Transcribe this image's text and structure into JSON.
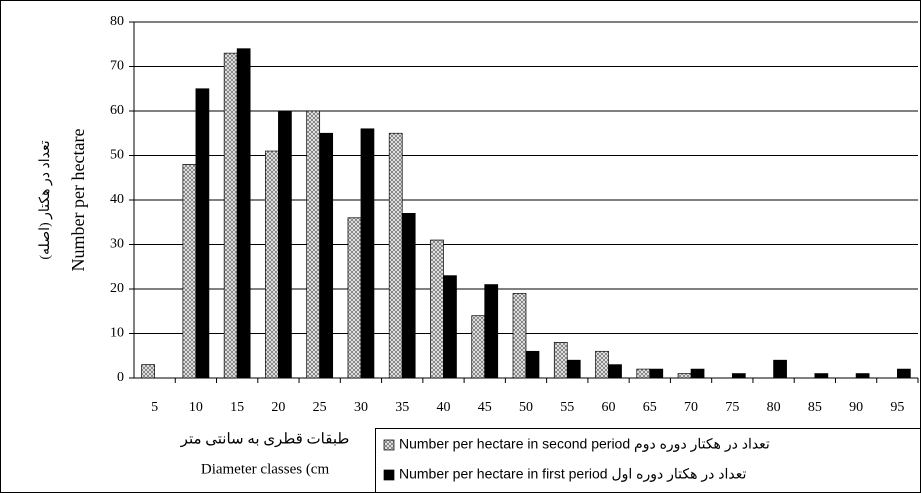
{
  "chart_data": {
    "type": "bar",
    "y_label": "Number per hectare",
    "y_label_fa": "تعداد در هکتار (اصله)",
    "x_label_fa": "طبقات قطری به سانتی متر",
    "x_label": "Diameter classes (cm",
    "categories": [
      "5",
      "10",
      "15",
      "20",
      "25",
      "30",
      "35",
      "40",
      "45",
      "50",
      "55",
      "60",
      "65",
      "70",
      "75",
      "80",
      "85",
      "90",
      "95"
    ],
    "series": [
      {
        "name": "Number per hectare in second period تعداد در هکتار دوره دوم",
        "color": "#808080",
        "pattern": "crosshatch",
        "values": [
          3,
          48,
          73,
          51,
          60,
          36,
          55,
          31,
          14,
          19,
          8,
          6,
          2,
          1,
          0,
          0,
          0,
          0,
          0
        ]
      },
      {
        "name": "Number per hectare in first period تعداد در هکتار دوره اول",
        "color": "#000000",
        "pattern": "solid",
        "values": [
          0,
          65,
          74,
          60,
          55,
          56,
          37,
          23,
          21,
          6,
          4,
          3,
          2,
          2,
          1,
          4,
          1,
          1,
          2
        ]
      }
    ],
    "ylim": [
      0,
      80
    ],
    "yticks": [
      0,
      10,
      20,
      30,
      40,
      50,
      60,
      70,
      80
    ],
    "grid": true
  }
}
